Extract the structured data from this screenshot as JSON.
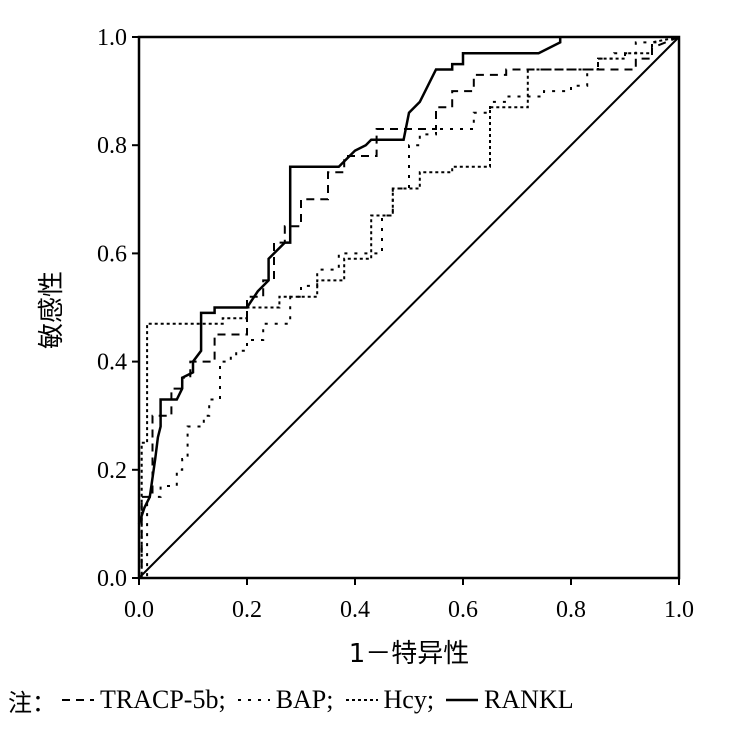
{
  "chart_data": {
    "type": "line",
    "title": "",
    "xlabel": "1－特异性",
    "ylabel": "敏感性",
    "xlim": [
      0,
      1
    ],
    "ylim": [
      0,
      1
    ],
    "x_ticks": [
      "0.0",
      "0.2",
      "0.4",
      "0.6",
      "0.8",
      "1.0"
    ],
    "y_ticks": [
      "0.0",
      "0.2",
      "0.4",
      "0.6",
      "0.8",
      "1.0"
    ],
    "grid": false,
    "legend_position": "bottom",
    "legend_prefix": "注：",
    "reference_line": {
      "from": [
        0,
        0
      ],
      "to": [
        1,
        1
      ]
    },
    "series": [
      {
        "name": "TRACP-5b;",
        "dash": "dashed",
        "x": [
          0,
          0.005,
          0.005,
          0.025,
          0.025,
          0.06,
          0.06,
          0.08,
          0.08,
          0.095,
          0.095,
          0.14,
          0.14,
          0.2,
          0.2,
          0.23,
          0.23,
          0.25,
          0.25,
          0.27,
          0.27,
          0.3,
          0.3,
          0.35,
          0.35,
          0.38,
          0.38,
          0.44,
          0.44,
          0.55,
          0.55,
          0.58,
          0.58,
          0.62,
          0.62,
          0.68,
          0.68,
          0.92,
          0.92,
          0.95,
          0.95,
          1.0
        ],
        "y": [
          0,
          0,
          0.15,
          0.15,
          0.3,
          0.3,
          0.35,
          0.35,
          0.37,
          0.37,
          0.4,
          0.4,
          0.45,
          0.45,
          0.52,
          0.52,
          0.55,
          0.55,
          0.62,
          0.62,
          0.65,
          0.65,
          0.7,
          0.7,
          0.75,
          0.75,
          0.78,
          0.78,
          0.83,
          0.83,
          0.87,
          0.87,
          0.9,
          0.9,
          0.93,
          0.93,
          0.94,
          0.94,
          0.96,
          0.96,
          0.98,
          1.0
        ]
      },
      {
        "name": "BAP;",
        "dash": "dotted",
        "x": [
          0,
          0.015,
          0.015,
          0.04,
          0.04,
          0.07,
          0.07,
          0.08,
          0.08,
          0.09,
          0.09,
          0.12,
          0.12,
          0.13,
          0.13,
          0.15,
          0.15,
          0.17,
          0.17,
          0.18,
          0.18,
          0.2,
          0.2,
          0.23,
          0.23,
          0.28,
          0.28,
          0.3,
          0.3,
          0.33,
          0.33,
          0.37,
          0.37,
          0.45,
          0.45,
          0.47,
          0.47,
          0.5,
          0.5,
          0.52,
          0.52,
          0.55,
          0.55,
          0.62,
          0.62,
          0.65,
          0.65,
          0.68,
          0.68,
          0.75,
          0.75,
          0.8,
          0.8,
          0.83,
          0.83,
          0.85,
          0.85,
          0.88,
          0.88,
          0.92,
          0.92,
          0.96,
          0.96,
          1.0
        ],
        "y": [
          0,
          0,
          0.15,
          0.15,
          0.17,
          0.17,
          0.2,
          0.2,
          0.22,
          0.22,
          0.28,
          0.28,
          0.3,
          0.3,
          0.33,
          0.33,
          0.4,
          0.4,
          0.41,
          0.41,
          0.42,
          0.42,
          0.44,
          0.44,
          0.47,
          0.47,
          0.52,
          0.52,
          0.54,
          0.54,
          0.57,
          0.57,
          0.6,
          0.6,
          0.67,
          0.67,
          0.72,
          0.72,
          0.8,
          0.8,
          0.82,
          0.82,
          0.83,
          0.83,
          0.86,
          0.86,
          0.88,
          0.88,
          0.89,
          0.89,
          0.9,
          0.9,
          0.91,
          0.91,
          0.94,
          0.94,
          0.96,
          0.96,
          0.97,
          0.97,
          0.99,
          0.99,
          1.0,
          1.0
        ]
      },
      {
        "name": "Hcy;",
        "dash": "dense-dotted",
        "x": [
          0,
          0.005,
          0.005,
          0.015,
          0.015,
          0.155,
          0.155,
          0.2,
          0.2,
          0.26,
          0.26,
          0.33,
          0.33,
          0.38,
          0.38,
          0.43,
          0.43,
          0.47,
          0.47,
          0.52,
          0.52,
          0.58,
          0.58,
          0.65,
          0.65,
          0.72,
          0.72,
          0.85,
          0.85,
          0.9,
          0.9,
          0.95,
          0.95,
          1.0
        ],
        "y": [
          0,
          0,
          0.25,
          0.25,
          0.47,
          0.47,
          0.48,
          0.48,
          0.5,
          0.5,
          0.52,
          0.52,
          0.55,
          0.55,
          0.59,
          0.59,
          0.67,
          0.67,
          0.72,
          0.72,
          0.75,
          0.75,
          0.76,
          0.76,
          0.87,
          0.87,
          0.94,
          0.94,
          0.96,
          0.96,
          0.97,
          0.97,
          0.99,
          1.0
        ]
      },
      {
        "name": "RANKL",
        "dash": "solid",
        "x": [
          0,
          0.01,
          0.02,
          0.03,
          0.035,
          0.04,
          0.04,
          0.07,
          0.08,
          0.08,
          0.1,
          0.1,
          0.115,
          0.115,
          0.14,
          0.14,
          0.2,
          0.22,
          0.24,
          0.24,
          0.27,
          0.28,
          0.28,
          0.35,
          0.37,
          0.4,
          0.42,
          0.43,
          0.44,
          0.49,
          0.5,
          0.52,
          0.55,
          0.55,
          0.58,
          0.58,
          0.6,
          0.6,
          0.62,
          0.62,
          0.74,
          0.78,
          0.78
        ],
        "y": [
          0.1,
          0.13,
          0.15,
          0.22,
          0.26,
          0.28,
          0.33,
          0.33,
          0.35,
          0.37,
          0.38,
          0.4,
          0.42,
          0.49,
          0.49,
          0.5,
          0.5,
          0.53,
          0.55,
          0.59,
          0.62,
          0.62,
          0.76,
          0.76,
          0.76,
          0.79,
          0.8,
          0.81,
          0.81,
          0.81,
          0.86,
          0.88,
          0.94,
          0.94,
          0.94,
          0.95,
          0.95,
          0.97,
          0.97,
          0.97,
          0.97,
          0.99,
          1.0
        ]
      }
    ]
  }
}
